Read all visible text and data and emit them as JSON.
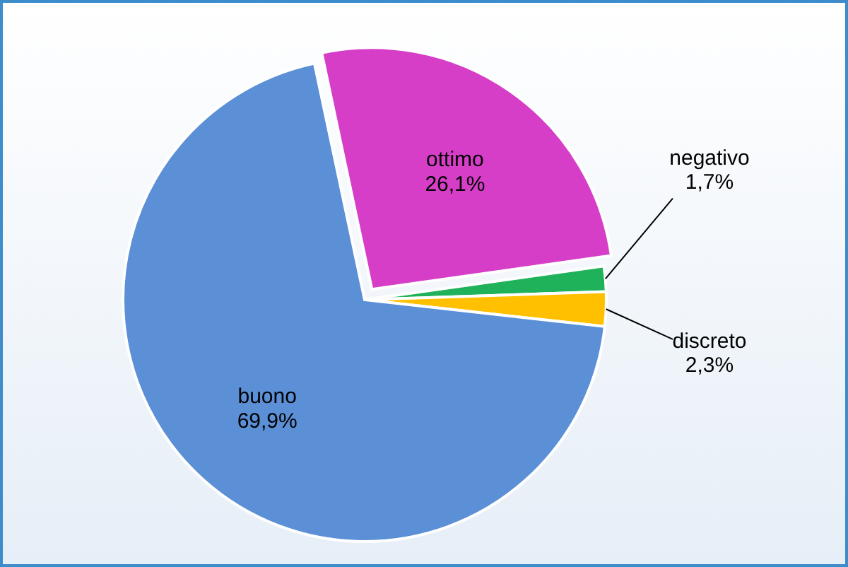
{
  "chart_data": {
    "type": "pie",
    "categories": [
      "ottimo",
      "negativo",
      "discreto",
      "buono"
    ],
    "values": [
      26.1,
      1.7,
      2.3,
      69.9
    ],
    "value_labels": [
      "26,1%",
      "1,7%",
      "2,3%",
      "69,9%"
    ],
    "colors": [
      "#d63ec8",
      "#1fb25a",
      "#ffc000",
      "#5b8fd6"
    ]
  }
}
